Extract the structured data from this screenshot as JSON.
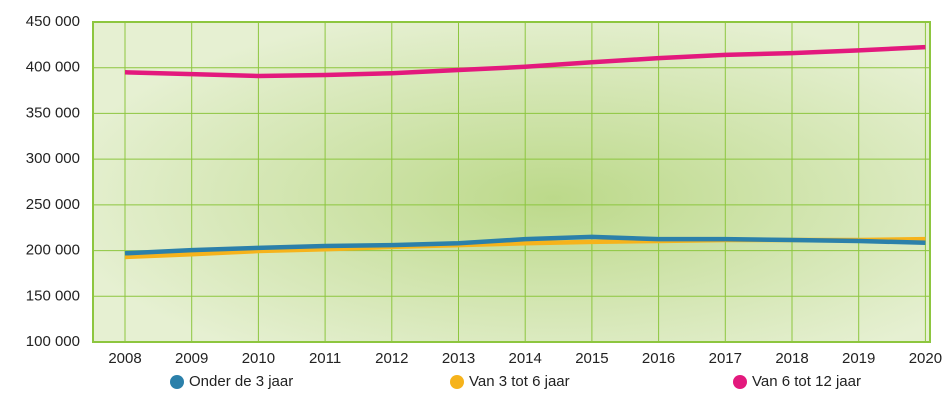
{
  "chart_data": {
    "type": "line",
    "categories": [
      "2008",
      "2009",
      "2010",
      "2011",
      "2012",
      "2013",
      "2014",
      "2015",
      "2016",
      "2017",
      "2018",
      "2019",
      "2020"
    ],
    "series": [
      {
        "name": "Onder de 3 jaar",
        "color": "#2b80aa",
        "values": [
          197000,
          200500,
          203000,
          205000,
          206000,
          208000,
          212500,
          215000,
          212500,
          212500,
          211500,
          210500,
          208500
        ]
      },
      {
        "name": "Van 3 tot 6 jaar",
        "color": "#f6b31b",
        "values": [
          193000,
          196000,
          199500,
          201500,
          204000,
          206000,
          208000,
          209500,
          210500,
          211500,
          211500,
          211500,
          212500
        ]
      },
      {
        "name": "Van 6 tot 12 jaar",
        "color": "#e3197d",
        "values": [
          395000,
          393000,
          391000,
          392000,
          394000,
          397500,
          401000,
          406000,
          410500,
          414000,
          416000,
          419000,
          422500
        ]
      }
    ],
    "ylim": [
      100000,
      450000
    ],
    "yticks": [
      {
        "value": 100000,
        "label": "100 000"
      },
      {
        "value": 150000,
        "label": "150 000"
      },
      {
        "value": 200000,
        "label": "200 000"
      },
      {
        "value": 250000,
        "label": "250 000"
      },
      {
        "value": 300000,
        "label": "300 000"
      },
      {
        "value": 350000,
        "label": "350 000"
      },
      {
        "value": 400000,
        "label": "400 000"
      },
      {
        "value": 450000,
        "label": "450 000"
      }
    ],
    "grid": true
  }
}
